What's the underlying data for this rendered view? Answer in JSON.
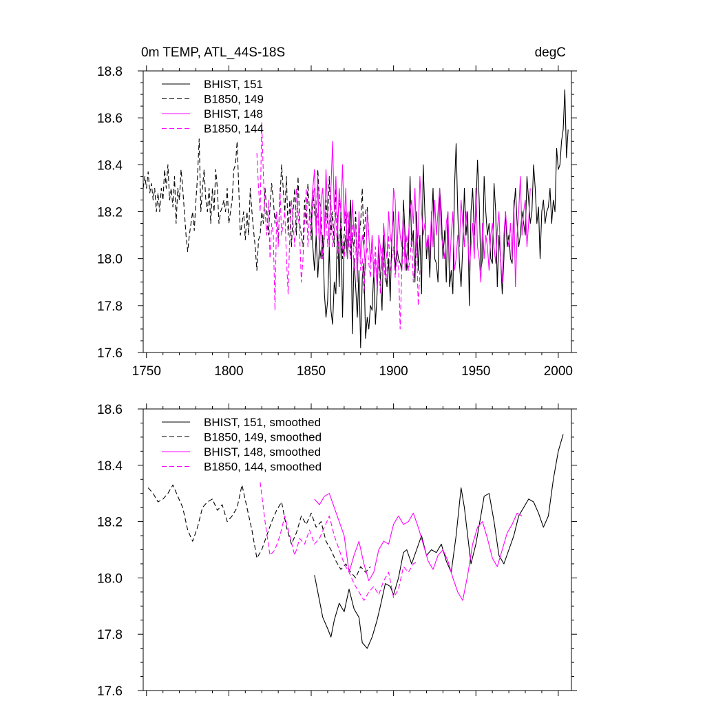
{
  "colors": {
    "bhist_151": "#000000",
    "b1850_149": "#000000",
    "bhist_148": "#ff00ff",
    "b1850_144": "#ff00ff"
  },
  "chart_data": [
    {
      "type": "line",
      "title": "0m TEMP, ATL_44S-18S",
      "units": "degC",
      "xlim": [
        1748,
        2008
      ],
      "ylim": [
        17.6,
        18.8
      ],
      "xticks": [
        1750,
        1800,
        1850,
        1900,
        1950,
        2000
      ],
      "xtick_labels": [
        "1750",
        "1800",
        "1850",
        "1900",
        "1950",
        "2000"
      ],
      "yticks": [
        17.6,
        17.8,
        18.0,
        18.2,
        18.4,
        18.6,
        18.8
      ],
      "ytick_labels": [
        "17.6",
        "17.8",
        "18.0",
        "18.2",
        "18.4",
        "18.6",
        "18.8"
      ],
      "grid": false,
      "legend_position": "top-left",
      "series": [
        {
          "name": "BHIST, 151",
          "color": "#000000",
          "dash": "solid",
          "x_start": 1850,
          "values": [
            18.2,
            18.05,
            17.95,
            18.1,
            17.92,
            18.05,
            18.0,
            18.1,
            17.85,
            17.75,
            17.82,
            18.05,
            17.78,
            17.72,
            17.9,
            17.85,
            18.15,
            17.88,
            18.2,
            17.75,
            18.05,
            18.1,
            18.0,
            18.12,
            18.25,
            17.68,
            18.0,
            17.88,
            17.75,
            17.95,
            17.62,
            17.92,
            17.98,
            17.66,
            17.75,
            17.7,
            17.8,
            17.78,
            17.95,
            17.72,
            17.85,
            18.05,
            17.92,
            17.78,
            18.1,
            17.95,
            17.88,
            18.0,
            17.82,
            18.1,
            18.2,
            17.95,
            18.05,
            18.0,
            17.98,
            17.95,
            18.25,
            18.1,
            17.95,
            18.0,
            18.35,
            18.05,
            18.12,
            17.9,
            18.2,
            17.95,
            18.1,
            17.85,
            18.4,
            18.2,
            18.0,
            18.1,
            17.92,
            18.15,
            18.3,
            18.0,
            17.98,
            17.9,
            18.3,
            18.2,
            18.0,
            18.12,
            17.9,
            18.2,
            17.88,
            17.95,
            17.85,
            18.3,
            18.49,
            18.2,
            17.98,
            17.88,
            18.05,
            18.3,
            18.1,
            18.2,
            17.8,
            18.2,
            18.3,
            18.1,
            18.2,
            18.42,
            18.25,
            17.95,
            18.0,
            18.35,
            18.2,
            18.1,
            18.15,
            18.0,
            17.98,
            18.32,
            18.2,
            17.88,
            18.1,
            18.0,
            17.85,
            18.0,
            18.2,
            18.05,
            18.1,
            18.0,
            17.98,
            18.2,
            18.3,
            18.15,
            18.05,
            18.1,
            18.2,
            18.15,
            18.1,
            18.35,
            18.25,
            18.15,
            18.2,
            18.4,
            18.3,
            18.15,
            18.22,
            18.0,
            18.2,
            18.25,
            18.15,
            18.2,
            18.22,
            18.3,
            18.15,
            18.25,
            18.2,
            18.47,
            18.38,
            18.4,
            18.5,
            18.55,
            18.72,
            18.43,
            18.55
          ]
        },
        {
          "name": "B1850, 149",
          "color": "#000000",
          "dash": "dashed",
          "x_start": 1748,
          "values": [
            18.3,
            18.35,
            18.3,
            18.37,
            18.28,
            18.32,
            18.25,
            18.3,
            18.2,
            18.28,
            18.2,
            18.3,
            18.25,
            18.38,
            18.3,
            18.4,
            18.25,
            18.3,
            18.22,
            18.35,
            18.15,
            18.3,
            18.25,
            18.38,
            18.3,
            18.2,
            18.1,
            18.03,
            18.1,
            18.15,
            18.2,
            18.12,
            18.25,
            18.35,
            18.51,
            18.2,
            18.3,
            18.38,
            18.25,
            18.2,
            18.3,
            18.15,
            18.3,
            18.2,
            18.38,
            18.3,
            18.15,
            18.2,
            18.22,
            18.25,
            18.2,
            18.3,
            18.15,
            18.2,
            18.25,
            18.38,
            18.4,
            18.5,
            18.3,
            18.1,
            18.15,
            18.2,
            18.08,
            18.2,
            18.1,
            18.3,
            18.2,
            18.12,
            18.05,
            17.95,
            18.08,
            18.1,
            18.2,
            18.15,
            18.3,
            18.2,
            18.1,
            18.22,
            18.32,
            18.25,
            18.15,
            18.2,
            18.08,
            18.25,
            18.4,
            18.3,
            18.2,
            18.35,
            18.1,
            18.25,
            18.05,
            18.2,
            18.3,
            18.1,
            18.35,
            18.15,
            18.1,
            18.05,
            18.25,
            18.15,
            18.32,
            18.2,
            18.08,
            18.3,
            18.2,
            18.15,
            18.38,
            18.25,
            18.2,
            18.0,
            18.1,
            18.25,
            18.15,
            18.35,
            18.1,
            18.2,
            18.05,
            18.3,
            18.15,
            18.25,
            18.2,
            18.0,
            18.1,
            18.2,
            18.05,
            18.15,
            18.0,
            18.1,
            18.05,
            18.2,
            17.95,
            18.1,
            18.15,
            18.3,
            18.05,
            18.2,
            18.22,
            18.1
          ]
        },
        {
          "name": "BHIST, 148",
          "color": "#ff00ff",
          "dash": "solid",
          "x_start": 1850,
          "values": [
            18.2,
            18.3,
            18.38,
            18.1,
            18.35,
            18.0,
            18.25,
            18.3,
            18.1,
            18.38,
            18.2,
            18.05,
            18.3,
            18.5,
            18.2,
            18.35,
            18.1,
            18.3,
            18.2,
            18.4,
            18.15,
            18.3,
            18.0,
            18.2,
            18.05,
            18.25,
            18.1,
            18.15,
            17.9,
            18.2,
            18.0,
            18.1,
            18.05,
            17.95,
            18.2,
            18.1,
            17.98,
            18.1,
            17.92,
            18.0,
            17.88,
            18.1,
            18.05,
            17.95,
            18.15,
            18.05,
            18.0,
            18.2,
            18.1,
            18.05,
            18.3,
            18.25,
            18.0,
            18.2,
            18.1,
            18.05,
            18.2,
            17.95,
            18.0,
            18.1,
            18.2,
            18.25,
            18.15,
            18.3,
            18.05,
            18.1,
            18.35,
            18.2,
            18.1,
            18.15,
            18.05,
            18.1,
            18.0,
            18.2,
            18.05,
            18.25,
            18.1,
            18.2,
            18.3,
            18.1,
            18.05,
            18.0,
            18.15,
            18.2,
            17.95,
            18.1,
            18.2,
            17.95,
            18.0,
            18.1,
            18.05,
            18.25,
            18.15,
            18.05,
            18.2,
            18.1,
            17.95,
            18.05,
            18.15,
            18.0,
            18.3,
            18.05,
            18.0,
            17.9,
            18.15,
            18.0,
            18.1,
            18.05,
            17.95,
            18.1,
            18.15,
            18.05,
            17.98,
            18.12,
            18.2,
            18.0,
            17.9,
            18.1,
            18.2,
            18.1,
            18.05,
            18.15,
            18.0,
            18.25,
            17.88,
            18.1,
            18.2,
            18.35,
            18.1,
            18.2,
            18.25,
            18.05,
            18.15,
            18.3
          ]
        },
        {
          "name": "B1850, 144",
          "color": "#ff00ff",
          "dash": "dashed",
          "x_start": 1817,
          "values": [
            18.45,
            18.3,
            18.2,
            18.58,
            18.35,
            18.2,
            18.1,
            18.25,
            18.0,
            18.15,
            18.1,
            17.78,
            18.2,
            18.05,
            18.3,
            18.1,
            18.15,
            18.2,
            18.0,
            17.85,
            18.1,
            18.25,
            18.15,
            18.05,
            18.3,
            18.2,
            18.1,
            17.9,
            18.0,
            18.15,
            18.3,
            18.05,
            18.2,
            18.1,
            18.25,
            18.3,
            18.1,
            18.2,
            18.05,
            18.15,
            18.0,
            18.1,
            18.2,
            18.05,
            18.15,
            18.25,
            18.05,
            18.1,
            18.2,
            18.0,
            18.1,
            18.15,
            18.05,
            18.0,
            18.1,
            18.2,
            18.05,
            18.0,
            18.15,
            17.95,
            18.05,
            18.0,
            18.1,
            17.95,
            18.0,
            17.85,
            18.0,
            18.05,
            17.98,
            17.92,
            18.1,
            17.95,
            18.05,
            17.9,
            18.0,
            17.85,
            18.05,
            18.0,
            17.9,
            17.95,
            18.1,
            17.95,
            18.0,
            18.05,
            17.92,
            18.0,
            17.98,
            17.7,
            17.95,
            18.05,
            18.0,
            18.1,
            17.95,
            18.0,
            18.1,
            17.9,
            17.98,
            18.05,
            17.8,
            17.95
          ]
        }
      ]
    },
    {
      "type": "line",
      "title": "",
      "units": "",
      "xlim": [
        1748,
        2008
      ],
      "ylim": [
        17.6,
        18.6
      ],
      "xticks": [
        1750,
        1800,
        1850,
        1900,
        1950,
        2000
      ],
      "xtick_labels": [],
      "yticks": [
        17.6,
        17.8,
        18.0,
        18.2,
        18.4,
        18.6
      ],
      "ytick_labels": [
        "17.6",
        "17.8",
        "18.0",
        "18.2",
        "18.4",
        "18.6"
      ],
      "grid": false,
      "legend_position": "top-left",
      "series": [
        {
          "name": "BHIST, 151, smoothed",
          "color": "#000000",
          "dash": "solid",
          "x": [
            1852,
            1855,
            1857,
            1860,
            1862,
            1864,
            1867,
            1870,
            1873,
            1876,
            1879,
            1881,
            1884,
            1887,
            1890,
            1892,
            1895,
            1898,
            1900,
            1903,
            1906,
            1908,
            1911,
            1914,
            1917,
            1920,
            1923,
            1926,
            1929,
            1932,
            1935,
            1938,
            1941,
            1943,
            1945,
            1947,
            1950,
            1953,
            1955,
            1958,
            1961,
            1964,
            1967,
            1970,
            1973,
            1976,
            1979,
            1982,
            1985,
            1988,
            1991,
            1994,
            1997,
            2000,
            2003
          ],
          "y": [
            18.01,
            17.92,
            17.86,
            17.82,
            17.79,
            17.85,
            17.91,
            17.88,
            17.96,
            17.89,
            17.86,
            17.77,
            17.75,
            17.79,
            17.85,
            17.9,
            17.98,
            17.97,
            17.94,
            18.0,
            18.09,
            18.1,
            18.05,
            18.1,
            18.15,
            18.08,
            18.1,
            18.09,
            18.12,
            18.06,
            18.02,
            18.15,
            18.32,
            18.25,
            18.15,
            18.05,
            18.12,
            18.22,
            18.29,
            18.3,
            18.2,
            18.08,
            18.05,
            18.1,
            18.15,
            18.22,
            18.25,
            18.28,
            18.27,
            18.23,
            18.18,
            18.22,
            18.35,
            18.45,
            18.51
          ]
        },
        {
          "name": "B1850, 149, smoothed",
          "color": "#000000",
          "dash": "dashed",
          "x": [
            1751,
            1754,
            1757,
            1760,
            1763,
            1766,
            1769,
            1772,
            1775,
            1778,
            1781,
            1784,
            1787,
            1790,
            1793,
            1796,
            1799,
            1802,
            1805,
            1808,
            1811,
            1814,
            1817,
            1820,
            1823,
            1826,
            1829,
            1832,
            1835,
            1838,
            1841,
            1844,
            1847,
            1850,
            1853,
            1856,
            1859,
            1862,
            1865,
            1868,
            1871,
            1874,
            1877,
            1880,
            1883,
            1886
          ],
          "y": [
            18.32,
            18.3,
            18.27,
            18.28,
            18.3,
            18.33,
            18.29,
            18.25,
            18.17,
            18.13,
            18.18,
            18.25,
            18.27,
            18.28,
            18.24,
            18.26,
            18.2,
            18.22,
            18.25,
            18.33,
            18.25,
            18.17,
            18.07,
            18.1,
            18.15,
            18.2,
            18.24,
            18.27,
            18.18,
            18.12,
            18.16,
            18.22,
            18.19,
            18.23,
            18.18,
            18.2,
            18.13,
            18.1,
            18.06,
            18.03,
            18.05,
            18.02,
            18.0,
            18.04,
            18.02,
            18.04
          ]
        },
        {
          "name": "BHIST, 148, smoothed",
          "color": "#ff00ff",
          "dash": "solid",
          "x": [
            1852,
            1855,
            1858,
            1861,
            1864,
            1867,
            1870,
            1873,
            1876,
            1879,
            1882,
            1885,
            1888,
            1891,
            1894,
            1897,
            1900,
            1903,
            1906,
            1909,
            1912,
            1915,
            1918,
            1921,
            1924,
            1927,
            1930,
            1933,
            1936,
            1939,
            1942,
            1945,
            1948,
            1951,
            1954,
            1957,
            1960,
            1963,
            1966,
            1969,
            1972,
            1975,
            1978
          ],
          "y": [
            18.28,
            18.26,
            18.29,
            18.3,
            18.25,
            18.2,
            18.15,
            18.02,
            18.08,
            18.13,
            18.05,
            17.99,
            18.02,
            18.1,
            18.13,
            18.12,
            18.19,
            18.22,
            18.19,
            18.2,
            18.23,
            18.18,
            18.12,
            18.06,
            18.03,
            18.08,
            18.1,
            18.06,
            18.0,
            17.95,
            17.92,
            18.01,
            18.12,
            18.18,
            18.2,
            18.14,
            18.07,
            18.04,
            18.1,
            18.16,
            18.19,
            18.23,
            18.22
          ]
        },
        {
          "name": "B1850, 144, smoothed",
          "color": "#ff00ff",
          "dash": "dashed",
          "x": [
            1819,
            1822,
            1825,
            1828,
            1831,
            1834,
            1837,
            1840,
            1843,
            1846,
            1849,
            1852,
            1855,
            1858,
            1861,
            1864,
            1867,
            1870,
            1873,
            1876,
            1879,
            1882,
            1885,
            1888,
            1891,
            1894,
            1897,
            1900,
            1903,
            1906,
            1909,
            1912,
            1915
          ],
          "y": [
            18.34,
            18.2,
            18.08,
            18.1,
            18.15,
            18.22,
            18.15,
            18.08,
            18.14,
            18.12,
            18.17,
            18.12,
            18.14,
            18.18,
            18.22,
            18.15,
            18.1,
            18.05,
            18.02,
            17.98,
            17.95,
            17.92,
            17.95,
            17.97,
            17.94,
            17.99,
            18.02,
            17.93,
            17.96,
            18.04,
            18.02,
            18.05,
            18.06
          ]
        }
      ]
    }
  ]
}
